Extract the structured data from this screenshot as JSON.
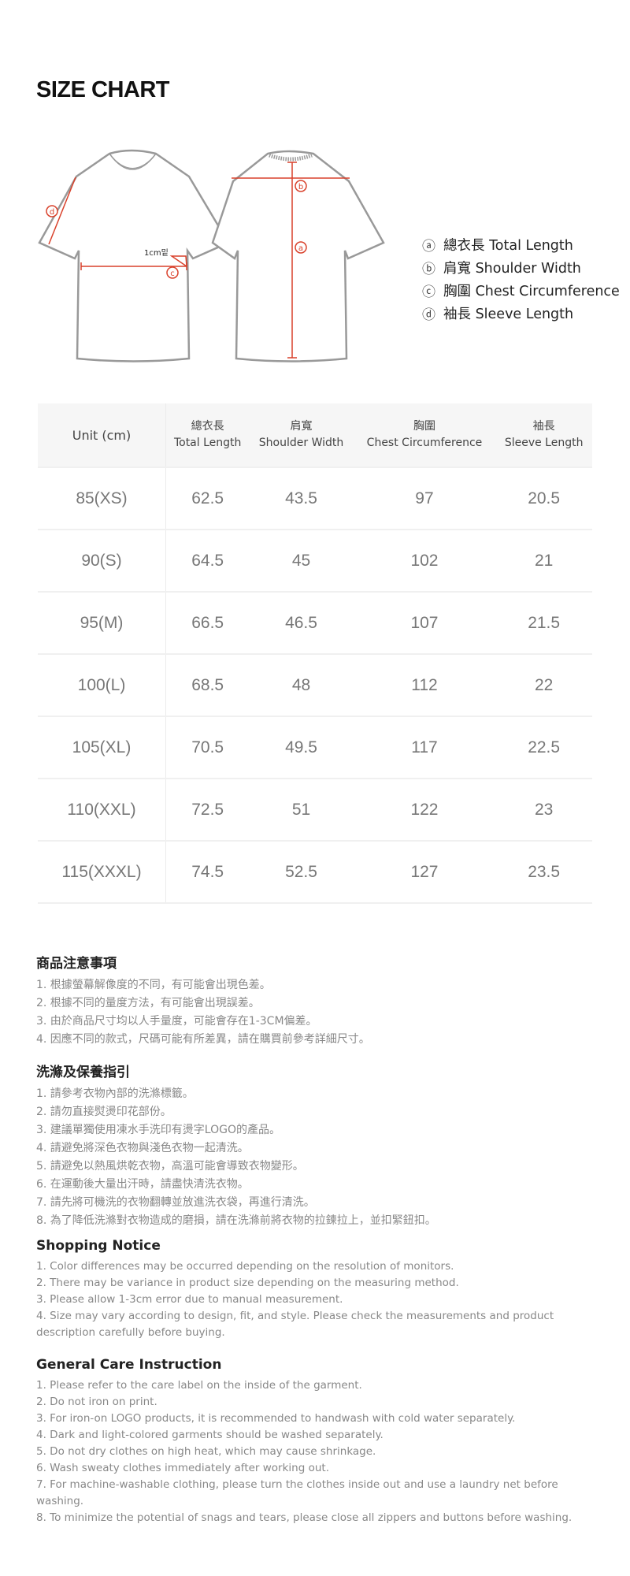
{
  "title": "SIZE CHART",
  "diagram": {
    "annotation": "1cm밑",
    "markers": [
      "a",
      "b",
      "c",
      "d"
    ],
    "accent_color": "#d9412b"
  },
  "legend": [
    {
      "marker": "ⓐ",
      "label": "總衣長 Total Length"
    },
    {
      "marker": "ⓑ",
      "label": "肩寬 Shoulder Width"
    },
    {
      "marker": "ⓒ",
      "label": "胸圍 Chest Circumference"
    },
    {
      "marker": "ⓓ",
      "label": "袖長 Sleeve Length"
    }
  ],
  "table": {
    "unit_header": "Unit (cm)",
    "columns": [
      {
        "zh": "總衣長",
        "en": "Total Length"
      },
      {
        "zh": "肩寬",
        "en": "Shoulder Width"
      },
      {
        "zh": "胸圍",
        "en": "Chest Circumference"
      },
      {
        "zh": "袖長",
        "en": "Sleeve Length"
      }
    ],
    "rows": [
      [
        "85(XS)",
        "62.5",
        "43.5",
        "97",
        "20.5"
      ],
      [
        "90(S)",
        "64.5",
        "45",
        "102",
        "21"
      ],
      [
        "95(M)",
        "66.5",
        "46.5",
        "107",
        "21.5"
      ],
      [
        "100(L)",
        "68.5",
        "48",
        "112",
        "22"
      ],
      [
        "105(XL)",
        "70.5",
        "49.5",
        "117",
        "22.5"
      ],
      [
        "110(XXL)",
        "72.5",
        "51",
        "122",
        "23"
      ],
      [
        "115(XXXL)",
        "74.5",
        "52.5",
        "127",
        "23.5"
      ]
    ]
  },
  "sections": [
    {
      "heading": "商品注意事項",
      "lines": [
        "1. 根據螢幕解像度的不同，有可能會出現色差。",
        "2. 根據不同的量度方法，有可能會出現誤差。",
        "3. 由於商品尺寸均以人手量度，可能會存在1-3CM偏差。",
        "4. 因應不同的款式，尺碼可能有所差異，請在購買前參考詳細尺寸。"
      ]
    },
    {
      "heading": "洗滌及保養指引",
      "lines": [
        "1. 請參考衣物內部的洗滌標籤。",
        "2. 請勿直接熨燙印花部份。",
        "3. 建議單獨使用凍水手洗印有燙字LOGO的產品。",
        "4. 請避免將深色衣物與淺色衣物一起清洗。",
        "5. 請避免以熱風烘乾衣物，高溫可能會導致衣物變形。",
        "6. 在運動後大量出汗時，請盡快清洗衣物。",
        "7. 請先將可機洗的衣物翻轉並放進洗衣袋，再進行清洗。",
        "8. 為了降低洗滌對衣物造成的磨損，請在洗滌前將衣物的拉鍊拉上，並扣緊鈕扣。"
      ]
    },
    {
      "heading": "Shopping Notice",
      "lines": [
        "1. Color differences may be occurred depending on the resolution of monitors.",
        "2. There may be variance in product size depending on the measuring method.",
        "3. Please allow 1-3cm error due to manual measurement.",
        "4. Size may vary according to design, fit, and style. Please check the measurements and product description carefully before buying."
      ]
    },
    {
      "heading": "General Care Instruction",
      "lines": [
        "1. Please refer to the care label on the inside of the garment.",
        "2. Do not iron on print.",
        "3. For iron-on LOGO products, it is recommended to handwash with cold water separately.",
        "4. Dark and light-colored garments should be washed separately.",
        "5. Do not dry clothes on high heat, which may cause shrinkage.",
        "6. Wash sweaty clothes immediately after working out.",
        "7. For machine-washable clothing, please turn the clothes inside out and use a laundry net before washing.",
        "8. To minimize the potential of snags and tears, please close all zippers and buttons before washing."
      ]
    }
  ]
}
